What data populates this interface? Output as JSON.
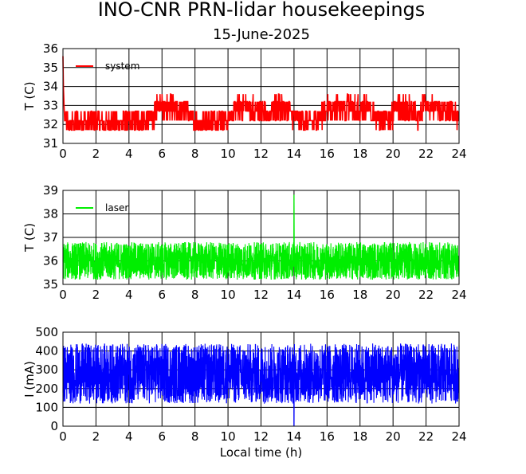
{
  "header": {
    "title": "INO-CNR PRN-lidar housekeepings",
    "subtitle": "15-June-2025"
  },
  "chart_data": [
    {
      "type": "line",
      "xlabel": "",
      "ylabel": "T (C)",
      "xlim": [
        0,
        24
      ],
      "ylim": [
        31,
        36
      ],
      "xticks": [
        "0",
        "2",
        "4",
        "6",
        "8",
        "10",
        "12",
        "14",
        "16",
        "18",
        "20",
        "22",
        "24"
      ],
      "yticks": [
        "31",
        "32",
        "33",
        "34",
        "35",
        "36"
      ],
      "grid": true,
      "legend_position": "top-left",
      "series": [
        {
          "name": "system",
          "color": "#ff0000",
          "x": [
            0.0,
            0.02,
            0.05,
            0.1,
            0.5,
            1.0,
            1.5,
            2.0,
            2.5,
            3.0,
            3.5,
            4.0,
            4.5,
            5.0,
            5.5,
            5.8,
            6.0,
            6.5,
            7.0,
            7.5,
            8.0,
            8.5,
            9.0,
            9.5,
            10.0,
            10.5,
            11.0,
            11.5,
            12.0,
            12.5,
            13.0,
            13.5,
            14.0,
            14.5,
            15.0,
            15.5,
            16.0,
            16.5,
            17.0,
            17.5,
            18.0,
            18.5,
            19.0,
            19.5,
            20.0,
            20.5,
            21.0,
            21.5,
            22.0,
            22.5,
            23.0,
            23.5,
            24.0
          ],
          "y": [
            35.6,
            34.2,
            33.4,
            32.2,
            32.0,
            32.2,
            32.1,
            32.2,
            32.0,
            32.2,
            32.1,
            32.0,
            32.2,
            32.2,
            32.4,
            33.2,
            32.8,
            32.9,
            32.6,
            32.7,
            32.2,
            32.1,
            32.2,
            32.3,
            32.2,
            32.8,
            32.9,
            32.7,
            32.6,
            32.4,
            32.8,
            32.7,
            32.4,
            32.2,
            32.1,
            32.3,
            32.7,
            32.8,
            32.9,
            32.7,
            32.6,
            32.7,
            32.4,
            32.2,
            32.5,
            32.7,
            32.6,
            32.4,
            32.8,
            32.9,
            32.5,
            32.6,
            32.4
          ],
          "noise_range": [
            31.6,
            33.6
          ]
        }
      ]
    },
    {
      "type": "line",
      "xlabel": "",
      "ylabel": "T (C)",
      "xlim": [
        0,
        24
      ],
      "ylim": [
        35,
        39
      ],
      "xticks": [
        "0",
        "2",
        "4",
        "6",
        "8",
        "10",
        "12",
        "14",
        "16",
        "18",
        "20",
        "22",
        "24"
      ],
      "yticks": [
        "35",
        "36",
        "37",
        "38",
        "39"
      ],
      "grid": true,
      "legend_position": "top-left",
      "series": [
        {
          "name": "laser",
          "color": "#00ee00",
          "x": [
            0,
            1,
            2,
            3,
            4,
            5,
            6,
            7,
            8,
            9,
            10,
            11,
            12,
            13,
            13.9,
            14.0,
            14.1,
            15,
            16,
            17,
            18,
            19,
            20,
            21,
            22,
            23,
            24
          ],
          "y": [
            36.0,
            36.0,
            36.1,
            36.0,
            36.0,
            36.0,
            36.0,
            36.0,
            36.0,
            36.1,
            36.0,
            36.0,
            36.0,
            36.0,
            36.0,
            38.8,
            36.0,
            36.0,
            36.0,
            36.0,
            36.0,
            36.0,
            36.0,
            36.0,
            36.0,
            36.0,
            36.0
          ],
          "noise_range": [
            35.2,
            36.8
          ]
        }
      ]
    },
    {
      "type": "line",
      "xlabel": "Local time (h)",
      "ylabel": "I (mA)",
      "xlim": [
        0,
        24
      ],
      "ylim": [
        0,
        500
      ],
      "xticks": [
        "0",
        "2",
        "4",
        "6",
        "8",
        "10",
        "12",
        "14",
        "16",
        "18",
        "20",
        "22",
        "24"
      ],
      "yticks": [
        "0",
        "100",
        "200",
        "300",
        "400",
        "500"
      ],
      "grid": true,
      "legend_position": "top-left",
      "series": [
        {
          "name": "",
          "color": "#0000ff",
          "x": [
            0,
            1,
            2,
            3,
            4,
            5,
            6,
            7,
            8,
            9,
            10,
            11,
            12,
            13,
            13.98,
            14.0,
            14.02,
            15,
            16,
            17,
            18,
            19,
            20,
            21,
            22,
            23,
            24
          ],
          "y": [
            270,
            275,
            272,
            270,
            271,
            272,
            270,
            274,
            271,
            270,
            273,
            272,
            270,
            271,
            270,
            0,
            270,
            272,
            271,
            270,
            273,
            271,
            272,
            270,
            271,
            272,
            270
          ],
          "noise_range": [
            120,
            440
          ]
        }
      ]
    }
  ]
}
